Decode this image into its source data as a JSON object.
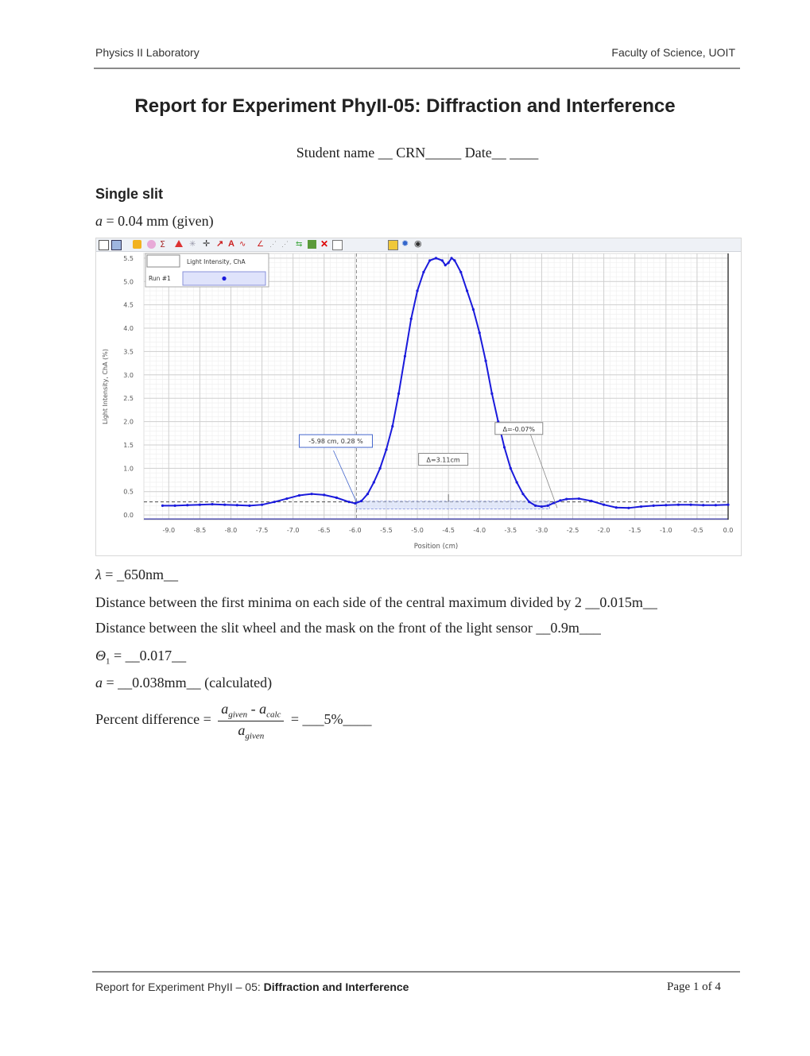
{
  "header": {
    "left": "Physics II Laboratory",
    "right": "Faculty of Science, UOIT"
  },
  "title": "Report for Experiment PhyII-05: Diffraction and Interference",
  "student_line": "Student name __ CRN_____ Date__ ____",
  "section_title": "Single slit",
  "given_a": {
    "var": "a",
    "text": " = 0.04 mm (given)"
  },
  "chart_data": {
    "type": "scatter",
    "xlabel": "Position (cm)",
    "ylabel": "Light Intensity, ChA (%)",
    "xlim": [
      -9.4,
      0.0
    ],
    "ylim": [
      -0.1,
      5.6
    ],
    "x_ticks": [
      "-9.0",
      "-8.5",
      "-8.0",
      "-7.5",
      "-7.0",
      "-6.5",
      "-6.0",
      "-5.5",
      "-5.0",
      "-4.5",
      "-4.0",
      "-3.5",
      "-3.0",
      "-2.5",
      "-2.0",
      "-1.5",
      "-1.0",
      "-0.5",
      "0.0"
    ],
    "x_tick_values": [
      -9.0,
      -8.5,
      -8.0,
      -7.5,
      -7.0,
      -6.5,
      -6.0,
      -5.5,
      -5.0,
      -4.5,
      -4.0,
      -3.5,
      -3.0,
      -2.5,
      -2.0,
      -1.5,
      -1.0,
      -0.5,
      0.0
    ],
    "y_ticks": [
      "0.0",
      "0.5",
      "1.0",
      "1.5",
      "2.0",
      "2.5",
      "3.0",
      "3.5",
      "4.0",
      "4.5",
      "5.0",
      "5.5"
    ],
    "y_tick_values": [
      0.0,
      0.5,
      1.0,
      1.5,
      2.0,
      2.5,
      3.0,
      3.5,
      4.0,
      4.5,
      5.0,
      5.5
    ],
    "legend": {
      "header": "Light Intensity, ChA",
      "run": "Run #1",
      "placement": "top-left"
    },
    "series": [
      {
        "name": "Run #1",
        "color": "#1a1adc",
        "x": [
          -9.1,
          -8.9,
          -8.7,
          -8.5,
          -8.3,
          -8.1,
          -7.9,
          -7.7,
          -7.5,
          -7.3,
          -7.1,
          -6.9,
          -6.7,
          -6.5,
          -6.3,
          -6.1,
          -6.0,
          -5.9,
          -5.8,
          -5.7,
          -5.6,
          -5.5,
          -5.4,
          -5.3,
          -5.2,
          -5.1,
          -5.0,
          -4.9,
          -4.8,
          -4.7,
          -4.6,
          -4.55,
          -4.5,
          -4.45,
          -4.4,
          -4.3,
          -4.2,
          -4.1,
          -4.0,
          -3.9,
          -3.8,
          -3.7,
          -3.6,
          -3.5,
          -3.4,
          -3.3,
          -3.2,
          -3.1,
          -3.0,
          -2.9,
          -2.8,
          -2.7,
          -2.6,
          -2.4,
          -2.2,
          -2.0,
          -1.8,
          -1.6,
          -1.4,
          -1.2,
          -1.0,
          -0.8,
          -0.6,
          -0.4,
          -0.2,
          0.0
        ],
        "y": [
          0.2,
          0.2,
          0.21,
          0.22,
          0.23,
          0.22,
          0.21,
          0.2,
          0.22,
          0.28,
          0.35,
          0.42,
          0.45,
          0.43,
          0.37,
          0.28,
          0.25,
          0.3,
          0.45,
          0.7,
          1.0,
          1.4,
          1.9,
          2.6,
          3.4,
          4.2,
          4.8,
          5.2,
          5.45,
          5.5,
          5.45,
          5.35,
          5.4,
          5.5,
          5.45,
          5.2,
          4.8,
          4.4,
          3.9,
          3.3,
          2.6,
          2.0,
          1.45,
          1.0,
          0.7,
          0.45,
          0.28,
          0.2,
          0.18,
          0.2,
          0.26,
          0.31,
          0.34,
          0.35,
          0.3,
          0.22,
          0.16,
          0.15,
          0.18,
          0.2,
          0.21,
          0.22,
          0.22,
          0.21,
          0.21,
          0.22
        ]
      }
    ],
    "reference_level": 0.28,
    "annotations": [
      {
        "text": "-5.98 cm, 0.28 %",
        "x": -5.98,
        "y": 0.28
      },
      {
        "text": "Δ=-0.07%"
      },
      {
        "text": "Δ=3.11cm"
      }
    ],
    "grid": true
  },
  "lines": {
    "lambda": {
      "sym": "λ",
      "text": " = _650nm__"
    },
    "distance_minima": "Distance between the first minima on each side of the central maximum divided by 2 __0.015m__",
    "distance_slit": "Distance between the slit wheel and the mask on the front of the light sensor __0.9m___",
    "theta": {
      "sym": "Θ",
      "sub": "1",
      "text": " = __0.017__"
    },
    "a_calc": {
      "var": "a",
      "text": " = __0.038mm__ (calculated)"
    },
    "percent": {
      "label": "Percent difference = ",
      "num_a": "a",
      "num_a_sub": "given",
      "minus": " - ",
      "num_b": "a",
      "num_b_sub": "calc",
      "den": "a",
      "den_sub": "given",
      "result": " = ___5%____"
    }
  },
  "footer": {
    "left_plain": "Report for Experiment PhyII – 05: ",
    "left_bold": "Diffraction and Interference",
    "right": "Page 1 of 4"
  }
}
